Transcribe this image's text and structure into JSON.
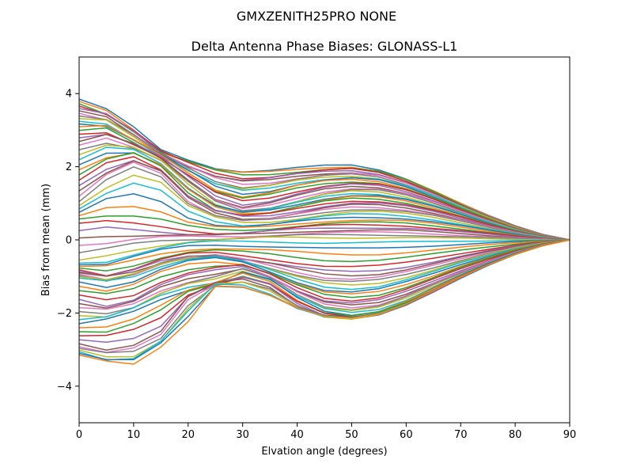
{
  "chart_data": {
    "type": "line",
    "suptitle": "GMXZENITH25PRO  NONE",
    "title": "Delta Antenna Phase Biases: GLONASS-L1",
    "xlabel": "Elvation angle (degrees)",
    "ylabel": "Bias from mean (mm)",
    "xlim": [
      0,
      90
    ],
    "ylim": [
      -5,
      5
    ],
    "xticks": [
      0,
      10,
      20,
      30,
      40,
      50,
      60,
      70,
      80,
      90
    ],
    "xtick_labels": [
      "0",
      "10",
      "20",
      "30",
      "40",
      "50",
      "60",
      "70",
      "80",
      "90"
    ],
    "yticks": [
      -4,
      -2,
      0,
      2,
      4
    ],
    "ytick_labels": [
      "−4",
      "−2",
      "0",
      "2",
      "4"
    ],
    "grid": false,
    "legend": "none",
    "x": [
      0,
      5,
      10,
      15,
      20,
      25,
      30,
      35,
      40,
      45,
      50,
      55,
      60,
      65,
      70,
      75,
      80,
      85,
      90
    ],
    "series_count": 72,
    "palette": [
      "#1f77b4",
      "#ff7f0e",
      "#2ca02c",
      "#d62728",
      "#9467bd",
      "#8c564b",
      "#e377c2",
      "#7f7f7f",
      "#bcbd22",
      "#17becf"
    ],
    "series": [
      {
        "values": [
          3.85,
          3.55,
          3.05,
          2.45,
          2.2,
          1.98,
          1.88,
          1.9,
          1.96,
          2.02,
          2.04,
          1.92,
          1.68,
          1.35,
          1.0,
          0.67,
          0.38,
          0.15,
          0
        ]
      },
      {
        "values": [
          3.5,
          3.35,
          2.9,
          2.35,
          2.0,
          1.7,
          1.55,
          1.6,
          1.72,
          1.8,
          1.84,
          1.76,
          1.55,
          1.26,
          0.94,
          0.63,
          0.36,
          0.14,
          0
        ]
      },
      {
        "values": [
          3.1,
          3.1,
          2.7,
          2.3,
          1.85,
          1.4,
          1.2,
          1.3,
          1.48,
          1.6,
          1.65,
          1.6,
          1.42,
          1.16,
          0.87,
          0.59,
          0.33,
          0.13,
          0
        ]
      },
      {
        "values": [
          2.55,
          2.75,
          2.55,
          2.2,
          1.6,
          1.05,
          0.8,
          0.9,
          1.1,
          1.3,
          1.4,
          1.38,
          1.24,
          1.02,
          0.77,
          0.52,
          0.29,
          0.11,
          0
        ]
      },
      {
        "values": [
          1.8,
          2.2,
          2.35,
          2.0,
          1.3,
          0.85,
          0.7,
          0.75,
          0.9,
          1.05,
          1.14,
          1.12,
          1.02,
          0.85,
          0.65,
          0.44,
          0.25,
          0.1,
          0
        ]
      },
      {
        "values": [
          1.0,
          1.6,
          2.0,
          1.75,
          1.0,
          0.65,
          0.5,
          0.52,
          0.62,
          0.74,
          0.82,
          0.82,
          0.76,
          0.65,
          0.5,
          0.34,
          0.19,
          0.08,
          0
        ]
      },
      {
        "values": [
          0.5,
          0.55,
          0.45,
          0.35,
          0.25,
          0.2,
          0.22,
          0.28,
          0.35,
          0.4,
          0.42,
          0.42,
          0.4,
          0.34,
          0.27,
          0.19,
          0.11,
          0.04,
          0
        ]
      },
      {
        "values": [
          -0.6,
          -0.5,
          -0.3,
          -0.15,
          -0.05,
          0.0,
          0.02,
          0.04,
          0.05,
          0.05,
          0.05,
          0.05,
          0.05,
          0.04,
          0.03,
          0.02,
          0.01,
          0.0,
          0
        ]
      },
      {
        "values": [
          -0.85,
          -1.0,
          -0.85,
          -0.6,
          -0.45,
          -0.42,
          -0.5,
          -0.6,
          -0.72,
          -0.82,
          -0.85,
          -0.82,
          -0.72,
          -0.58,
          -0.43,
          -0.29,
          -0.17,
          -0.07,
          0
        ]
      },
      {
        "values": [
          -1.05,
          -1.15,
          -1.0,
          -0.7,
          -0.5,
          -0.45,
          -0.6,
          -0.85,
          -1.1,
          -1.3,
          -1.35,
          -1.28,
          -1.1,
          -0.88,
          -0.64,
          -0.43,
          -0.24,
          -0.1,
          0
        ]
      },
      {
        "values": [
          -1.7,
          -1.85,
          -1.7,
          -1.3,
          -1.05,
          -0.9,
          -0.75,
          -1.0,
          -1.4,
          -1.7,
          -1.78,
          -1.7,
          -1.46,
          -1.16,
          -0.86,
          -0.58,
          -0.33,
          -0.13,
          0
        ]
      },
      {
        "values": [
          -2.3,
          -2.2,
          -1.95,
          -1.6,
          -1.35,
          -1.2,
          -0.9,
          -1.1,
          -1.6,
          -1.95,
          -2.05,
          -1.95,
          -1.68,
          -1.33,
          -0.98,
          -0.66,
          -0.37,
          -0.15,
          0
        ]
      },
      {
        "values": [
          -2.9,
          -3.05,
          -2.95,
          -2.6,
          -1.6,
          -1.2,
          -1.1,
          -1.3,
          -1.8,
          -2.1,
          -2.17,
          -2.05,
          -1.78,
          -1.42,
          -1.05,
          -0.7,
          -0.4,
          -0.16,
          0
        ]
      },
      {
        "values": [
          -3.15,
          -3.35,
          -3.4,
          -2.9,
          -2.2,
          -1.25,
          -1.3,
          -1.55,
          -1.88,
          -2.08,
          -2.12,
          -2.0,
          -1.75,
          -1.4,
          -1.03,
          -0.69,
          -0.39,
          -0.16,
          0
        ]
      }
    ]
  }
}
